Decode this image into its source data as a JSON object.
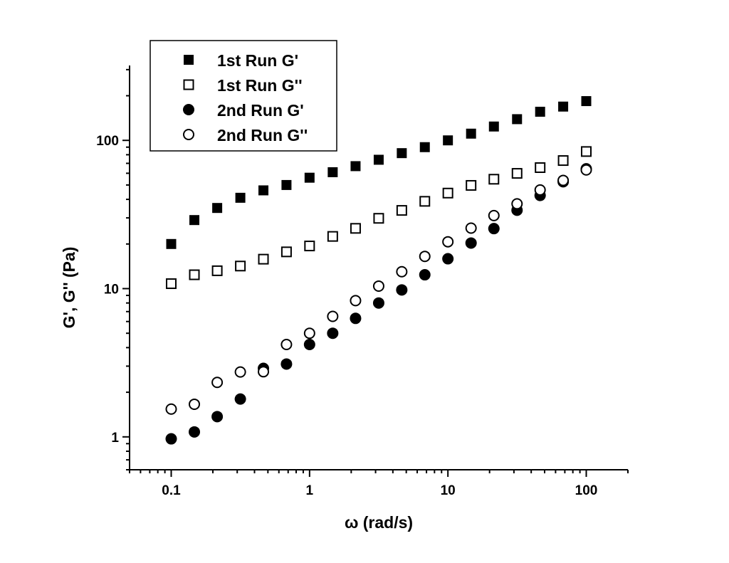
{
  "chart_data": {
    "type": "scatter",
    "xlabel": "ω (rad/s)",
    "ylabel": "G', G'' (Pa)",
    "xscale": "log",
    "yscale": "log",
    "xlim": [
      0.05,
      200
    ],
    "ylim": [
      0.6,
      320
    ],
    "x_ticks": [
      0.1,
      1,
      10,
      100
    ],
    "x_tick_labels": [
      "0.1",
      "1",
      "10",
      "100"
    ],
    "y_ticks": [
      1,
      10,
      100
    ],
    "y_tick_labels": [
      "1",
      "10",
      "100"
    ],
    "grid": false,
    "legend_position": "top-left",
    "x": [
      0.1,
      0.147,
      0.215,
      0.316,
      0.464,
      0.681,
      1,
      1.47,
      2.15,
      3.16,
      4.64,
      6.81,
      10,
      14.7,
      21.5,
      31.6,
      46.4,
      68.1,
      100
    ],
    "series": [
      {
        "name": "1st Run G'",
        "marker": "filled-square",
        "values": [
          20,
          29,
          35,
          41,
          46,
          50,
          56,
          61,
          67,
          74,
          82,
          90,
          100,
          111,
          124,
          139,
          156,
          169,
          184
        ]
      },
      {
        "name": "1st Run G''",
        "marker": "open-square",
        "values": [
          10.8,
          12.4,
          13.2,
          14.2,
          15.8,
          17.7,
          19.4,
          22.5,
          25.5,
          29.8,
          33.7,
          38.8,
          44.1,
          49.7,
          54.7,
          59.9,
          65.5,
          73.1,
          84.1
        ]
      },
      {
        "name": "2nd Run G'",
        "marker": "filled-circle",
        "values": [
          0.97,
          1.08,
          1.37,
          1.8,
          2.9,
          3.1,
          4.2,
          5,
          6.3,
          8,
          9.8,
          12.4,
          15.9,
          20.3,
          25.4,
          33.8,
          42.5,
          52.6,
          64.3
        ]
      },
      {
        "name": "2nd Run G''",
        "marker": "open-circle",
        "values": [
          1.54,
          1.66,
          2.33,
          2.74,
          2.75,
          4.2,
          5,
          6.5,
          8.3,
          10.4,
          13,
          16.5,
          20.7,
          25.6,
          31.1,
          37.3,
          46.3,
          53.7,
          63.2
        ]
      }
    ]
  }
}
